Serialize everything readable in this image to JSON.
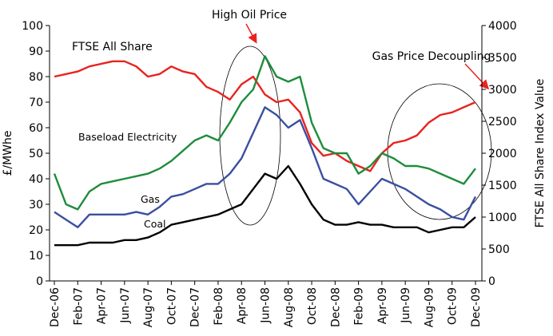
{
  "chart_data": {
    "type": "line",
    "y_label": "£/MWhe",
    "y2_label": "FTSE All Share Index Value",
    "categories": [
      "Dec-06",
      null,
      "Feb-07",
      null,
      "Apr-07",
      null,
      "Jun-07",
      null,
      "Aug-07",
      null,
      "Oct-07",
      null,
      "Dec-07",
      null,
      "Feb-08",
      null,
      "Apr-08",
      null,
      "Jun-08",
      null,
      "Aug-08",
      null,
      "Oct-08",
      null,
      "Dec-08",
      null,
      "Feb-09",
      null,
      "Apr-09",
      null,
      "Jun-09",
      null,
      "Aug-09",
      null,
      "Oct-09",
      null,
      "Dec-09"
    ],
    "ylim": [
      0,
      100
    ],
    "yticks": [
      0,
      10,
      20,
      30,
      40,
      50,
      60,
      70,
      80,
      90,
      100
    ],
    "y2lim": [
      0,
      4000
    ],
    "y2ticks": [
      0,
      500,
      1000,
      1500,
      2000,
      2500,
      3000,
      3500,
      4000
    ],
    "series": [
      {
        "name": "FTSE All Share",
        "color": "#e8231f",
        "axis": "y2",
        "values": [
          3200,
          3240,
          3280,
          3360,
          3400,
          3440,
          3440,
          3360,
          3200,
          3240,
          3360,
          3280,
          3240,
          3040,
          2960,
          2840,
          3080,
          3200,
          2920,
          2800,
          2840,
          2640,
          2160,
          1960,
          2000,
          1880,
          1800,
          1720,
          2000,
          2160,
          2200,
          2280,
          2480,
          2600,
          2640,
          2720,
          2800
        ]
      },
      {
        "name": "Baseload Electricity",
        "color": "#1e8c3c",
        "values": [
          42,
          30,
          28,
          35,
          38,
          39,
          40,
          41,
          42,
          44,
          47,
          51,
          55,
          57,
          55,
          62,
          70,
          75,
          88,
          80,
          78,
          80,
          62,
          52,
          50,
          50,
          42,
          45,
          50,
          48,
          45,
          45,
          44,
          42,
          40,
          38,
          44
        ]
      },
      {
        "name": "Gas",
        "color": "#3a4fa0",
        "values": [
          27,
          24,
          21,
          26,
          26,
          26,
          26,
          27,
          26,
          29,
          33,
          34,
          36,
          38,
          38,
          42,
          48,
          58,
          68,
          65,
          60,
          63,
          52,
          40,
          38,
          36,
          30,
          35,
          40,
          38,
          36,
          33,
          30,
          28,
          25,
          24,
          33
        ]
      },
      {
        "name": "Coal",
        "color": "#000000",
        "values": [
          14,
          14,
          14,
          15,
          15,
          15,
          16,
          16,
          17,
          19,
          22,
          23,
          24,
          25,
          26,
          28,
          30,
          36,
          42,
          40,
          45,
          38,
          30,
          24,
          22,
          22,
          23,
          22,
          22,
          21,
          21,
          21,
          19,
          20,
          21,
          21,
          25
        ]
      }
    ],
    "annotations": [
      "High Oil Price",
      "Gas Price Decoupling"
    ]
  }
}
